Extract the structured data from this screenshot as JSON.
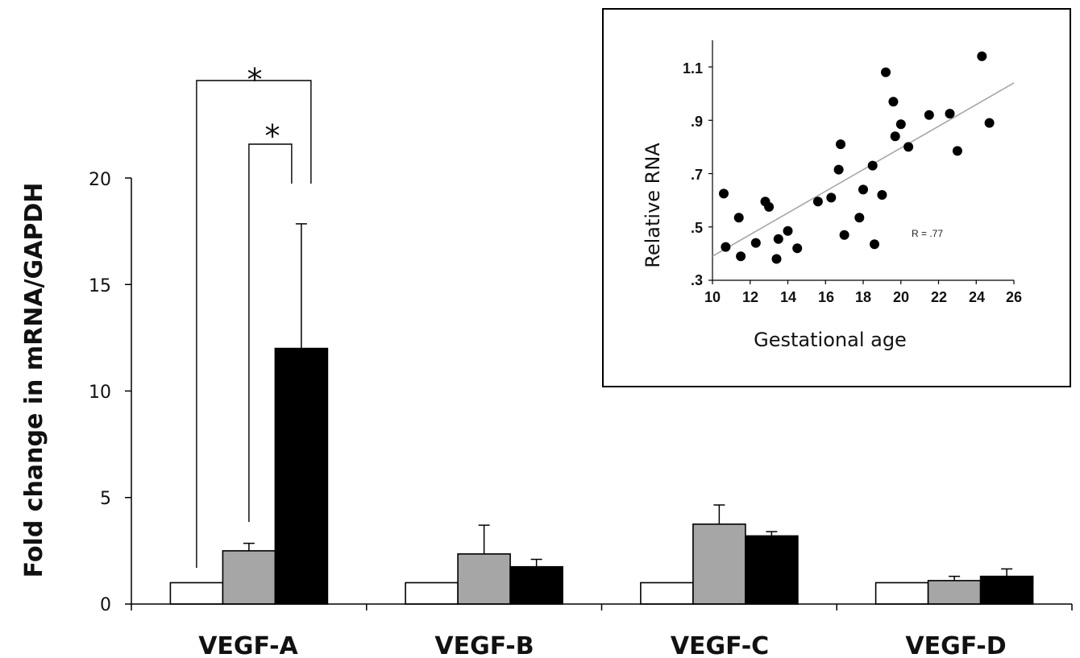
{
  "chart_data": [
    {
      "type": "bar",
      "ylabel": "Fold change in mRNA/GAPDH",
      "ylim": [
        0,
        20
      ],
      "yticks": [
        "0",
        "5",
        "10",
        "15",
        "20"
      ],
      "categories": [
        "VEGF-A",
        "VEGF-B",
        "VEGF-C",
        "VEGF-D"
      ],
      "series": [
        {
          "color": "#ffffff",
          "values": [
            1.0,
            1.0,
            1.0,
            1.0
          ],
          "errors": [
            0,
            0,
            0,
            0
          ]
        },
        {
          "color": "#a6a6a6",
          "values": [
            2.5,
            2.35,
            3.75,
            1.1
          ],
          "errors": [
            0.35,
            1.35,
            0.9,
            0.2
          ]
        },
        {
          "color": "#000000",
          "values": [
            12.0,
            1.75,
            3.2,
            1.3
          ],
          "errors": [
            5.85,
            0.35,
            0.2,
            0.35
          ]
        }
      ],
      "significance": [
        {
          "label": "*",
          "category": "VEGF-A",
          "from_series": 0,
          "to_series": 2
        },
        {
          "label": "*",
          "category": "VEGF-A",
          "from_series": 1,
          "to_series": 2
        }
      ],
      "grid": false,
      "legend": "none"
    },
    {
      "type": "scatter",
      "xlabel": "Gestational age",
      "ylabel": "Relative RNA",
      "xlim": [
        10,
        26
      ],
      "ylim": [
        0.3,
        1.2
      ],
      "xticks": [
        "10",
        "12",
        "14",
        "16",
        "18",
        "20",
        "22",
        "24",
        "26"
      ],
      "yticks": [
        ".3",
        ".5",
        ".7",
        ".9",
        "1.1"
      ],
      "annotation": "R = .77",
      "points": [
        {
          "x": 10.6,
          "y": 0.625
        },
        {
          "x": 10.7,
          "y": 0.425
        },
        {
          "x": 11.4,
          "y": 0.535
        },
        {
          "x": 11.5,
          "y": 0.39
        },
        {
          "x": 12.3,
          "y": 0.44
        },
        {
          "x": 12.8,
          "y": 0.595
        },
        {
          "x": 13.0,
          "y": 0.575
        },
        {
          "x": 13.4,
          "y": 0.38
        },
        {
          "x": 13.5,
          "y": 0.455
        },
        {
          "x": 14.0,
          "y": 0.485
        },
        {
          "x": 14.5,
          "y": 0.42
        },
        {
          "x": 15.6,
          "y": 0.595
        },
        {
          "x": 16.3,
          "y": 0.61
        },
        {
          "x": 16.7,
          "y": 0.715
        },
        {
          "x": 16.8,
          "y": 0.81
        },
        {
          "x": 17.0,
          "y": 0.47
        },
        {
          "x": 17.8,
          "y": 0.535
        },
        {
          "x": 18.0,
          "y": 0.64
        },
        {
          "x": 18.5,
          "y": 0.73
        },
        {
          "x": 18.6,
          "y": 0.435
        },
        {
          "x": 19.0,
          "y": 0.62
        },
        {
          "x": 19.2,
          "y": 1.08
        },
        {
          "x": 19.6,
          "y": 0.97
        },
        {
          "x": 19.7,
          "y": 0.84
        },
        {
          "x": 20.0,
          "y": 0.885
        },
        {
          "x": 20.4,
          "y": 0.8
        },
        {
          "x": 21.5,
          "y": 0.92
        },
        {
          "x": 22.6,
          "y": 0.925
        },
        {
          "x": 23.0,
          "y": 0.785
        },
        {
          "x": 24.3,
          "y": 1.14
        },
        {
          "x": 24.7,
          "y": 0.89
        }
      ],
      "trendline": {
        "x": [
          10,
          26
        ],
        "y": [
          0.39,
          1.04
        ]
      },
      "grid": false,
      "legend": "none"
    }
  ],
  "colors": {
    "axis": "#000000",
    "trendline": "#a6a6a6",
    "point": "#000000"
  }
}
